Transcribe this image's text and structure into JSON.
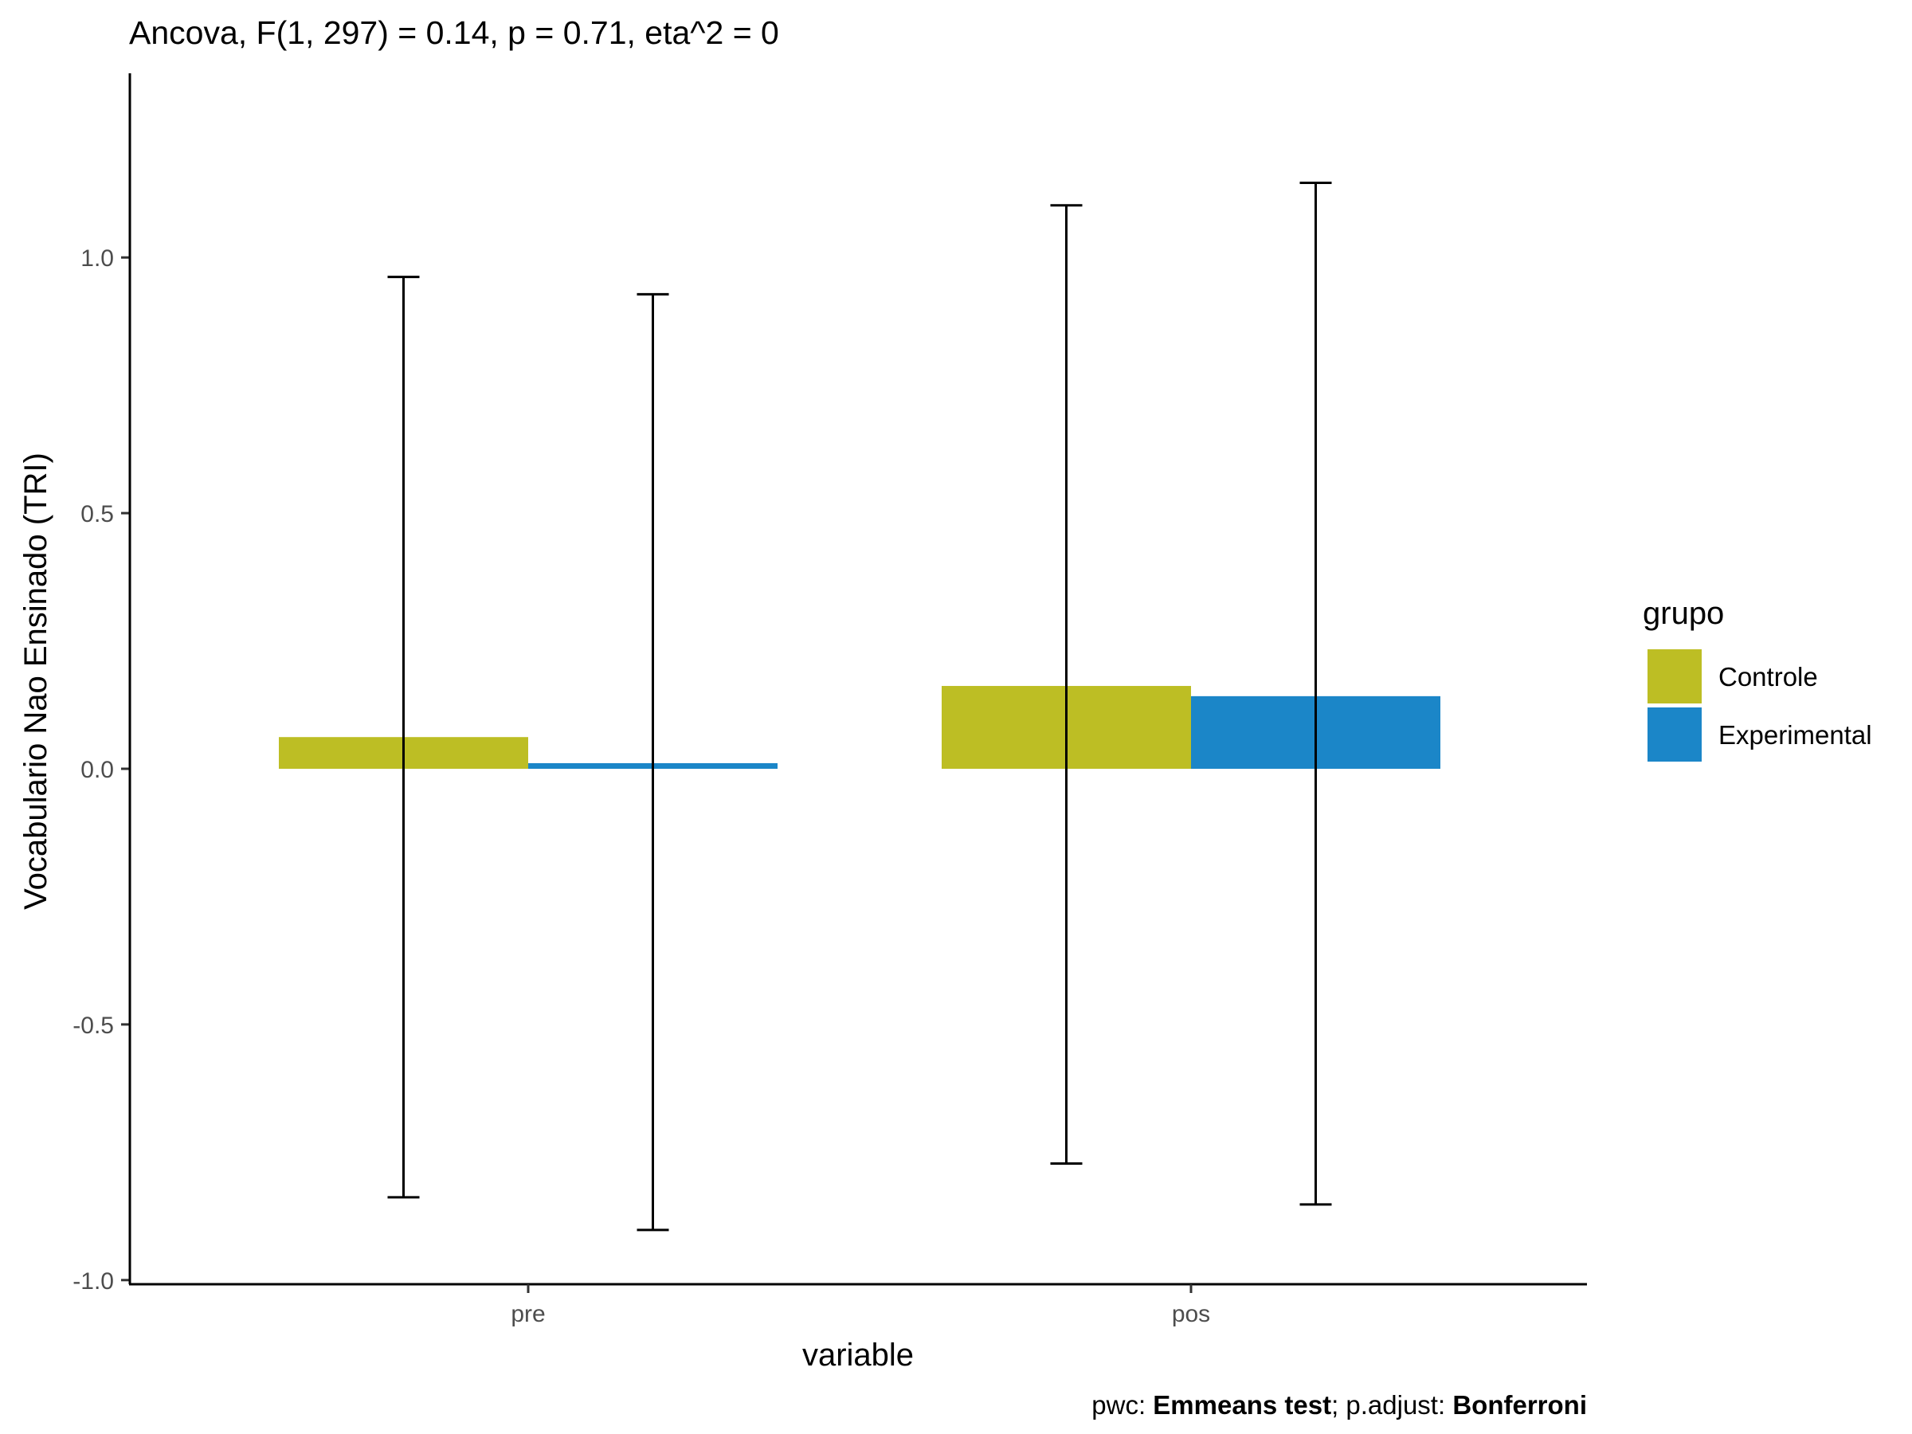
{
  "chart_data": {
    "type": "bar",
    "title": "Ancova, F(1, 297) = 0.14, p = 0.71, eta^2 = 0",
    "xlabel": "variable",
    "ylabel": "Vocabulario Nao Ensinado (TRI)",
    "categories": [
      "pre",
      "pos"
    ],
    "ylim": [
      -1.0,
      1.35
    ],
    "yticks": [
      -1.0,
      -0.5,
      0.0,
      0.5,
      1.0
    ],
    "ytick_labels": [
      "-1.0",
      "-0.5",
      "0.0",
      "0.5",
      "1.0"
    ],
    "grid": false,
    "legend": {
      "title": "grupo",
      "position": "right"
    },
    "series": [
      {
        "name": "Controle",
        "color": "#BDBE24",
        "values": [
          0.062,
          0.162
        ],
        "error_low": [
          -0.838,
          -0.772
        ],
        "error_high": [
          0.962,
          1.102
        ]
      },
      {
        "name": "Experimental",
        "color": "#1B86C8",
        "values": [
          0.011,
          0.142
        ],
        "error_low": [
          -0.902,
          -0.852
        ],
        "error_high": [
          0.928,
          1.146
        ]
      }
    ],
    "caption": {
      "prefix": "pwc: ",
      "method": "Emmeans test",
      "middle": "; p.adjust: ",
      "adjust": "Bonferroni"
    }
  }
}
